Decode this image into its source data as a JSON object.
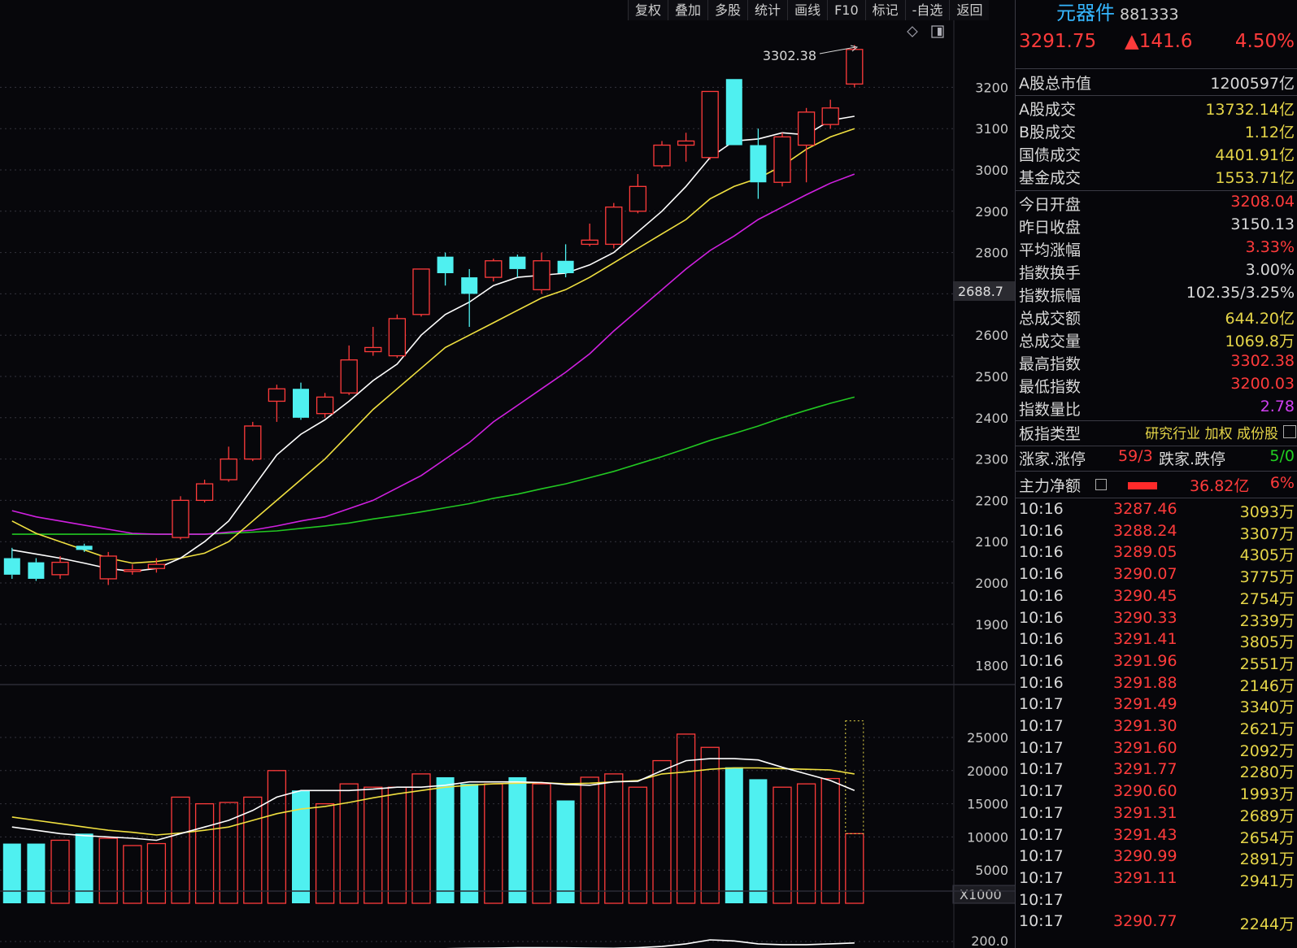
{
  "toolbar": [
    "复权",
    "叠加",
    "多股",
    "统计",
    "画线",
    "F10",
    "标记",
    "-自选",
    "返回"
  ],
  "chart_data": {
    "type": "candlestick",
    "price_ylim": [
      1750,
      3330
    ],
    "price_ticks": [
      1800,
      1900,
      2000,
      2100,
      2200,
      2300,
      2400,
      2500,
      2600,
      2700,
      2800,
      2900,
      3000,
      3100,
      3200
    ],
    "price_tick_labels": [
      "1800",
      "1900",
      "2000",
      "2100",
      "2200",
      "2300",
      "2400",
      "2500",
      "2600",
      "",
      "2800",
      "2900",
      "3000",
      "3100",
      "3200"
    ],
    "cursor_label": "2688.7",
    "max_label": "3302.38",
    "candles": [
      [
        2060,
        2020,
        2085,
        2010
      ],
      [
        2050,
        2010,
        2060,
        2005
      ],
      [
        2020,
        2050,
        2065,
        2010
      ],
      [
        2090,
        2080,
        2095,
        2075
      ],
      [
        2010,
        2065,
        2075,
        1995
      ],
      [
        2028,
        2032,
        2045,
        2020
      ],
      [
        2035,
        2045,
        2060,
        2025
      ],
      [
        2110,
        2200,
        2210,
        2105
      ],
      [
        2200,
        2240,
        2250,
        2195
      ],
      [
        2250,
        2300,
        2330,
        2245
      ],
      [
        2300,
        2380,
        2390,
        2295
      ],
      [
        2440,
        2470,
        2480,
        2390
      ],
      [
        2470,
        2400,
        2485,
        2395
      ],
      [
        2410,
        2450,
        2460,
        2400
      ],
      [
        2460,
        2540,
        2575,
        2455
      ],
      [
        2560,
        2570,
        2620,
        2550
      ],
      [
        2550,
        2640,
        2650,
        2545
      ],
      [
        2650,
        2760,
        2760,
        2645
      ],
      [
        2790,
        2750,
        2800,
        2720
      ],
      [
        2740,
        2700,
        2760,
        2620
      ],
      [
        2740,
        2780,
        2785,
        2730
      ],
      [
        2790,
        2760,
        2795,
        2740
      ],
      [
        2710,
        2780,
        2800,
        2700
      ],
      [
        2780,
        2750,
        2820,
        2740
      ],
      [
        2820,
        2830,
        2870,
        2815
      ],
      [
        2820,
        2910,
        2920,
        2810
      ],
      [
        2900,
        2960,
        2990,
        2895
      ],
      [
        3010,
        3060,
        3070,
        3005
      ],
      [
        3060,
        3070,
        3090,
        3020
      ],
      [
        3030,
        3190,
        3190,
        3025
      ],
      [
        3220,
        3060,
        3220,
        3060
      ],
      [
        3060,
        2970,
        3100,
        2930
      ],
      [
        2970,
        3080,
        3090,
        2960
      ],
      [
        3060,
        3140,
        3150,
        2970
      ],
      [
        3110,
        3150,
        3170,
        3100
      ],
      [
        3208.04,
        3291.75,
        3302.38,
        3200.03
      ]
    ],
    "ma5": [
      2080,
      2070,
      2060,
      2048,
      2035,
      2028,
      2035,
      2060,
      2100,
      2150,
      2230,
      2310,
      2360,
      2395,
      2440,
      2490,
      2530,
      2600,
      2650,
      2680,
      2720,
      2740,
      2745,
      2750,
      2770,
      2800,
      2850,
      2900,
      2960,
      3030,
      3070,
      3075,
      3090,
      3085,
      3120,
      3130
    ],
    "ma10": [
      2150,
      2120,
      2100,
      2080,
      2060,
      2048,
      2052,
      2060,
      2072,
      2100,
      2150,
      2200,
      2250,
      2300,
      2360,
      2420,
      2470,
      2520,
      2570,
      2600,
      2630,
      2660,
      2690,
      2710,
      2740,
      2775,
      2810,
      2845,
      2880,
      2930,
      2960,
      2980,
      3010,
      3050,
      3080,
      3100
    ],
    "ma20": [
      2175,
      2160,
      2150,
      2140,
      2130,
      2120,
      2118,
      2118,
      2118,
      2123,
      2128,
      2138,
      2150,
      2160,
      2180,
      2200,
      2230,
      2260,
      2300,
      2340,
      2390,
      2430,
      2470,
      2510,
      2555,
      2610,
      2660,
      2710,
      2760,
      2805,
      2840,
      2880,
      2910,
      2940,
      2968,
      2990
    ],
    "ma60": [
      2118,
      2118,
      2118,
      2118,
      2118,
      2118,
      2118,
      2118,
      2118,
      2120,
      2123,
      2126,
      2132,
      2138,
      2145,
      2155,
      2163,
      2172,
      2182,
      2192,
      2205,
      2215,
      2228,
      2240,
      2255,
      2270,
      2288,
      2306,
      2325,
      2345,
      2362,
      2380,
      2400,
      2418,
      2435,
      2450
    ],
    "volume_ylim": [
      0,
      30000
    ],
    "volume_ticks": [
      5000,
      10000,
      15000,
      20000,
      25000
    ],
    "volume_unit": "X1000",
    "volume": [
      9000,
      9000,
      9500,
      10500,
      9800,
      8700,
      9000,
      16000,
      15000,
      15200,
      16000,
      20000,
      17000,
      15000,
      18000,
      17500,
      17500,
      19500,
      19000,
      18000,
      18000,
      19000,
      18000,
      15500,
      19000,
      19500,
      17500,
      21500,
      25500,
      23500,
      20500,
      18700,
      17500,
      18000,
      18800,
      10500
    ],
    "vol_ma5": [
      11500,
      11000,
      10500,
      10200,
      10000,
      9800,
      9500,
      10500,
      11500,
      12500,
      14000,
      16000,
      17000,
      17000,
      17000,
      17200,
      17500,
      17500,
      17800,
      18300,
      18300,
      18300,
      18200,
      17900,
      17800,
      18300,
      18400,
      20000,
      21500,
      21800,
      21800,
      21600,
      20500,
      19500,
      18500,
      17000
    ],
    "vol_ma10": [
      13000,
      12500,
      12000,
      11500,
      11000,
      10700,
      10300,
      10600,
      11000,
      11500,
      12500,
      13500,
      14200,
      14600,
      15200,
      15900,
      16500,
      17000,
      17500,
      17800,
      18000,
      18100,
      18200,
      18000,
      18100,
      18300,
      18500,
      19500,
      19800,
      20200,
      20400,
      20400,
      20300,
      20200,
      20100,
      19500
    ],
    "lower_label": "200.0",
    "lower_line": [
      20,
      22,
      25,
      28,
      30,
      32,
      35,
      40,
      48,
      60,
      80,
      100,
      120,
      135,
      145,
      150,
      155,
      158,
      160,
      162,
      163,
      165,
      165,
      164,
      163,
      162,
      165,
      170,
      182,
      200,
      195,
      182,
      178,
      178,
      182,
      186
    ]
  },
  "panel": {
    "name": "元器件",
    "code": "881333",
    "price": "3291.75",
    "change": "▲141.6",
    "pct": "4.50%",
    "rows1": [
      {
        "label": "A股总市值",
        "value": "1200597亿",
        "color": "#d8d8d8"
      }
    ],
    "rows2": [
      {
        "label": "A股成交",
        "value": "13732.14亿",
        "color": "#e5d548"
      },
      {
        "label": "B股成交",
        "value": "1.12亿",
        "color": "#e5d548"
      },
      {
        "label": "国债成交",
        "value": "4401.91亿",
        "color": "#e5d548"
      },
      {
        "label": "基金成交",
        "value": "1553.71亿",
        "color": "#e5d548"
      }
    ],
    "rows3": [
      {
        "label": "今日开盘",
        "value": "3208.04",
        "color": "#ff3b3b"
      },
      {
        "label": "昨日收盘",
        "value": "3150.13",
        "color": "#d8d8d8"
      },
      {
        "label": "平均涨幅",
        "value": "3.33%",
        "color": "#ff3b3b"
      },
      {
        "label": "指数换手",
        "value": "3.00%",
        "color": "#d8d8d8"
      },
      {
        "label": "指数振幅",
        "value": "102.35/3.25%",
        "color": "#d8d8d8"
      },
      {
        "label": "总成交额",
        "value": "644.20亿",
        "color": "#e5d548"
      },
      {
        "label": "总成交量",
        "value": "1069.8万",
        "color": "#e5d548"
      },
      {
        "label": "最高指数",
        "value": "3302.38",
        "color": "#ff3b3b"
      },
      {
        "label": "最低指数",
        "value": "3200.03",
        "color": "#ff3b3b"
      },
      {
        "label": "指数量比",
        "value": "2.78",
        "color": "#d040f0"
      }
    ],
    "type_label": "板指类型",
    "type_value": "研究行业 加权 成份股",
    "up_label": "涨家.涨停",
    "up_value": "59/3",
    "down_label": "跌家.跌停",
    "down_value": "5/0",
    "flow_label": "主力净额",
    "flow_value": "36.82亿",
    "flow_pct": "6%",
    "ticks": [
      {
        "t": "10:16",
        "p": "3287.46",
        "v": "3093万"
      },
      {
        "t": "10:16",
        "p": "3288.24",
        "v": "3307万"
      },
      {
        "t": "10:16",
        "p": "3289.05",
        "v": "4305万"
      },
      {
        "t": "10:16",
        "p": "3290.07",
        "v": "3775万"
      },
      {
        "t": "10:16",
        "p": "3290.45",
        "v": "2754万"
      },
      {
        "t": "10:16",
        "p": "3290.33",
        "v": "2339万"
      },
      {
        "t": "10:16",
        "p": "3291.41",
        "v": "3805万"
      },
      {
        "t": "10:16",
        "p": "3291.96",
        "v": "2551万"
      },
      {
        "t": "10:16",
        "p": "3291.88",
        "v": "2146万"
      },
      {
        "t": "10:17",
        "p": "3291.49",
        "v": "3340万"
      },
      {
        "t": "10:17",
        "p": "3291.30",
        "v": "2621万"
      },
      {
        "t": "10:17",
        "p": "3291.60",
        "v": "2092万"
      },
      {
        "t": "10:17",
        "p": "3291.77",
        "v": "2280万"
      },
      {
        "t": "10:17",
        "p": "3290.60",
        "v": "1993万"
      },
      {
        "t": "10:17",
        "p": "3291.31",
        "v": "2689万"
      },
      {
        "t": "10:17",
        "p": "3291.43",
        "v": "2654万"
      },
      {
        "t": "10:17",
        "p": "3290.99",
        "v": "2891万"
      },
      {
        "t": "10:17",
        "p": "3291.11",
        "v": "2941万"
      },
      {
        "t": "10:17",
        "p": "",
        "v": ""
      },
      {
        "t": "10:17",
        "p": "3290.77",
        "v": "2244万"
      }
    ]
  }
}
